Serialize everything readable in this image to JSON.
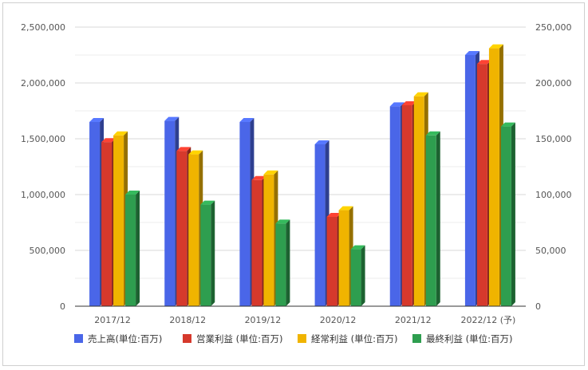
{
  "chart_data": {
    "type": "bar",
    "categories": [
      "2017/12",
      "2018/12",
      "2019/12",
      "2020/12",
      "2021/12",
      "2022/12 (予)"
    ],
    "series": [
      {
        "name": "売上高(単位:百万)",
        "axis": "left",
        "color": "#4a66e8",
        "values": [
          1650000,
          1660000,
          1650000,
          1450000,
          1790000,
          2250000
        ]
      },
      {
        "name": "営業利益 (単位:百万)",
        "axis": "right",
        "color": "#d6392c",
        "values": [
          147000,
          139000,
          113000,
          80000,
          180000,
          217000
        ]
      },
      {
        "name": "経常利益 (単位:百万)",
        "axis": "right",
        "color": "#f0b400",
        "values": [
          153000,
          136000,
          118000,
          86000,
          188000,
          231000
        ]
      },
      {
        "name": "最終利益 (単位:百万)",
        "axis": "right",
        "color": "#2e9e4f",
        "values": [
          100000,
          91000,
          74000,
          51000,
          153000,
          161000
        ]
      }
    ],
    "left_axis": {
      "ylim": [
        0,
        2500000
      ],
      "ticks": [
        "0",
        "500,000",
        "1,000,000",
        "1,500,000",
        "2,000,000",
        "2,500,000"
      ]
    },
    "right_axis": {
      "ylim": [
        0,
        250000
      ],
      "ticks": [
        "0",
        "50,000",
        "100,000",
        "150,000",
        "200,000",
        "250,000"
      ]
    },
    "title": "",
    "xlabel": "",
    "ylabel": "",
    "grid": true,
    "legend": "bottom"
  }
}
